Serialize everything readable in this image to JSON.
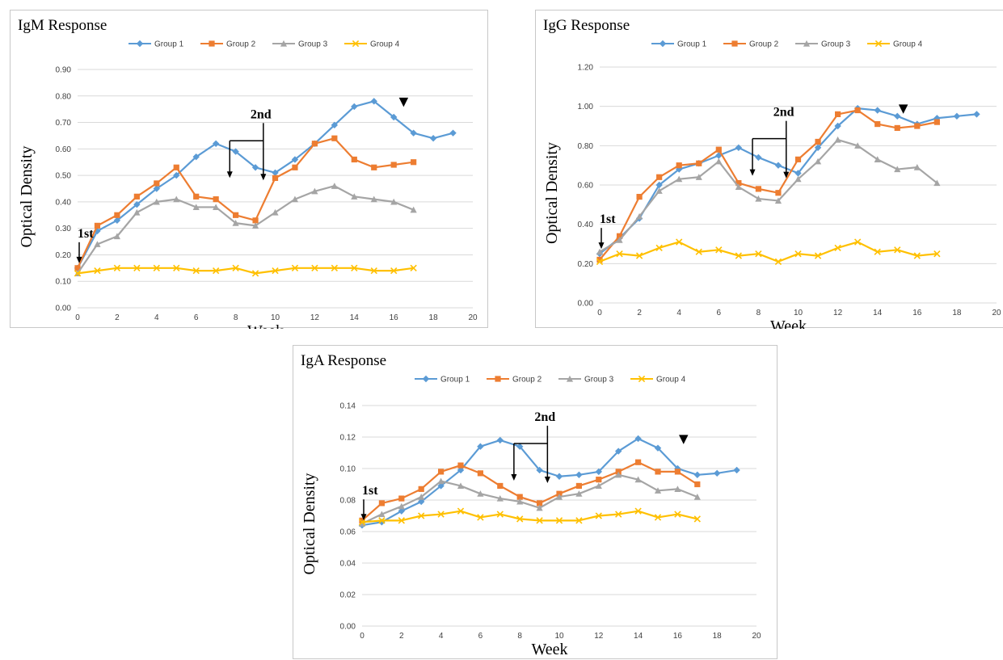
{
  "chart_data": [
    {
      "type": "line",
      "title": "IgM Response",
      "xlabel": "Week",
      "ylabel": "Optical Density",
      "xlim": [
        0,
        20
      ],
      "ylim": [
        0,
        0.9
      ],
      "xticks": [
        "0",
        "2",
        "4",
        "6",
        "8",
        "10",
        "12",
        "14",
        "16",
        "18",
        "20"
      ],
      "yticks": [
        "0.00",
        "0.10",
        "0.20",
        "0.30",
        "0.40",
        "0.50",
        "0.60",
        "0.70",
        "0.80",
        "0.90"
      ],
      "grid": true,
      "legend_position": "top",
      "series": [
        {
          "name": "Group 1",
          "color": "#5b9bd5",
          "marker": "diamond",
          "x": [
            0,
            1,
            2,
            3,
            4,
            5,
            6,
            7,
            8,
            9,
            10,
            11,
            12,
            13,
            14,
            15,
            16,
            17,
            18,
            19
          ],
          "y": [
            0.15,
            0.29,
            0.33,
            0.39,
            0.45,
            0.5,
            0.57,
            0.62,
            0.59,
            0.53,
            0.51,
            0.56,
            0.62,
            0.69,
            0.76,
            0.78,
            0.72,
            0.66,
            0.64,
            0.66
          ]
        },
        {
          "name": "Group 2",
          "color": "#ed7d31",
          "marker": "square",
          "x": [
            0,
            1,
            2,
            3,
            4,
            5,
            6,
            7,
            8,
            9,
            10,
            11,
            12,
            13,
            14,
            15,
            16,
            17
          ],
          "y": [
            0.15,
            0.31,
            0.35,
            0.42,
            0.47,
            0.53,
            0.42,
            0.41,
            0.35,
            0.33,
            0.49,
            0.53,
            0.62,
            0.64,
            0.56,
            0.53,
            0.54,
            0.55
          ]
        },
        {
          "name": "Group 3",
          "color": "#a5a5a5",
          "marker": "triangle",
          "x": [
            0,
            1,
            2,
            3,
            4,
            5,
            6,
            7,
            8,
            9,
            10,
            11,
            12,
            13,
            14,
            15,
            16,
            17
          ],
          "y": [
            0.13,
            0.24,
            0.27,
            0.36,
            0.4,
            0.41,
            0.38,
            0.38,
            0.32,
            0.31,
            0.36,
            0.41,
            0.44,
            0.46,
            0.42,
            0.41,
            0.4,
            0.37
          ]
        },
        {
          "name": "Group 4",
          "color": "#ffc000",
          "marker": "x",
          "x": [
            0,
            1,
            2,
            3,
            4,
            5,
            6,
            7,
            8,
            9,
            10,
            11,
            12,
            13,
            14,
            15,
            16,
            17
          ],
          "y": [
            0.13,
            0.14,
            0.15,
            0.15,
            0.15,
            0.15,
            0.14,
            0.14,
            0.15,
            0.13,
            0.14,
            0.15,
            0.15,
            0.15,
            0.15,
            0.14,
            0.14,
            0.15
          ]
        }
      ],
      "annotations": {
        "first": {
          "text": "1st",
          "week": 0
        },
        "second": {
          "text": "2nd",
          "week": 9
        },
        "marker": {
          "symbol": "▼",
          "week": 16.5
        }
      }
    },
    {
      "type": "line",
      "title": "IgG Response",
      "xlabel": "Week",
      "ylabel": "Optical Density",
      "xlim": [
        0,
        20
      ],
      "ylim": [
        0,
        1.2
      ],
      "xticks": [
        "0",
        "2",
        "4",
        "6",
        "8",
        "10",
        "12",
        "14",
        "16",
        "18",
        "20"
      ],
      "yticks": [
        "0.00",
        "0.20",
        "0.40",
        "0.60",
        "0.80",
        "1.00",
        "1.20"
      ],
      "grid": true,
      "legend_position": "top",
      "series": [
        {
          "name": "Group 1",
          "color": "#5b9bd5",
          "marker": "diamond",
          "x": [
            0,
            1,
            2,
            3,
            4,
            5,
            6,
            7,
            8,
            9,
            10,
            11,
            12,
            13,
            14,
            15,
            16,
            17,
            18,
            19
          ],
          "y": [
            0.25,
            0.33,
            0.43,
            0.6,
            0.68,
            0.71,
            0.75,
            0.79,
            0.74,
            0.7,
            0.66,
            0.79,
            0.9,
            0.99,
            0.98,
            0.95,
            0.91,
            0.94,
            0.95,
            0.96
          ]
        },
        {
          "name": "Group 2",
          "color": "#ed7d31",
          "marker": "square",
          "x": [
            0,
            1,
            2,
            3,
            4,
            5,
            6,
            7,
            8,
            9,
            10,
            11,
            12,
            13,
            14,
            15,
            16,
            17
          ],
          "y": [
            0.22,
            0.34,
            0.54,
            0.64,
            0.7,
            0.71,
            0.78,
            0.61,
            0.58,
            0.56,
            0.73,
            0.82,
            0.96,
            0.98,
            0.91,
            0.89,
            0.9,
            0.92
          ]
        },
        {
          "name": "Group 3",
          "color": "#a5a5a5",
          "marker": "triangle",
          "x": [
            0,
            1,
            2,
            3,
            4,
            5,
            6,
            7,
            8,
            9,
            10,
            11,
            12,
            13,
            14,
            15,
            16,
            17
          ],
          "y": [
            0.26,
            0.32,
            0.44,
            0.57,
            0.63,
            0.64,
            0.72,
            0.59,
            0.53,
            0.52,
            0.63,
            0.72,
            0.83,
            0.8,
            0.73,
            0.68,
            0.69,
            0.61
          ]
        },
        {
          "name": "Group 4",
          "color": "#ffc000",
          "marker": "x",
          "x": [
            0,
            1,
            2,
            3,
            4,
            5,
            6,
            7,
            8,
            9,
            10,
            11,
            12,
            13,
            14,
            15,
            16,
            17
          ],
          "y": [
            0.21,
            0.25,
            0.24,
            0.28,
            0.31,
            0.26,
            0.27,
            0.24,
            0.25,
            0.21,
            0.25,
            0.24,
            0.28,
            0.31,
            0.26,
            0.27,
            0.24,
            0.25
          ]
        }
      ],
      "annotations": {
        "first": {
          "text": "1st",
          "week": 0
        },
        "second": {
          "text": "2nd",
          "week": 9
        },
        "marker": {
          "symbol": "▼",
          "week": 15.3
        }
      }
    },
    {
      "type": "line",
      "title": "IgA Response",
      "xlabel": "Week",
      "ylabel": "Optical Density",
      "xlim": [
        0,
        20
      ],
      "ylim": [
        0,
        0.14
      ],
      "xticks": [
        "0",
        "2",
        "4",
        "6",
        "8",
        "10",
        "12",
        "14",
        "16",
        "18",
        "20"
      ],
      "yticks": [
        "0.00",
        "0.02",
        "0.04",
        "0.06",
        "0.08",
        "0.10",
        "0.12",
        "0.14"
      ],
      "grid": true,
      "legend_position": "top",
      "series": [
        {
          "name": "Group 1",
          "color": "#5b9bd5",
          "marker": "diamond",
          "x": [
            0,
            1,
            2,
            3,
            4,
            5,
            6,
            7,
            8,
            9,
            10,
            11,
            12,
            13,
            14,
            15,
            16,
            17,
            18,
            19
          ],
          "y": [
            0.064,
            0.066,
            0.073,
            0.079,
            0.089,
            0.099,
            0.114,
            0.118,
            0.114,
            0.099,
            0.095,
            0.096,
            0.098,
            0.111,
            0.119,
            0.113,
            0.1,
            0.096,
            0.097,
            0.099
          ]
        },
        {
          "name": "Group 2",
          "color": "#ed7d31",
          "marker": "square",
          "x": [
            0,
            1,
            2,
            3,
            4,
            5,
            6,
            7,
            8,
            9,
            10,
            11,
            12,
            13,
            14,
            15,
            16,
            17
          ],
          "y": [
            0.067,
            0.078,
            0.081,
            0.087,
            0.098,
            0.102,
            0.097,
            0.089,
            0.082,
            0.078,
            0.084,
            0.089,
            0.093,
            0.098,
            0.104,
            0.098,
            0.098,
            0.09
          ]
        },
        {
          "name": "Group 3",
          "color": "#a5a5a5",
          "marker": "triangle",
          "x": [
            0,
            1,
            2,
            3,
            4,
            5,
            6,
            7,
            8,
            9,
            10,
            11,
            12,
            13,
            14,
            15,
            16,
            17
          ],
          "y": [
            0.065,
            0.071,
            0.076,
            0.082,
            0.092,
            0.089,
            0.084,
            0.081,
            0.079,
            0.075,
            0.082,
            0.084,
            0.089,
            0.096,
            0.093,
            0.086,
            0.087,
            0.082
          ]
        },
        {
          "name": "Group 4",
          "color": "#ffc000",
          "marker": "x",
          "x": [
            0,
            1,
            2,
            3,
            4,
            5,
            6,
            7,
            8,
            9,
            10,
            11,
            12,
            13,
            14,
            15,
            16,
            17
          ],
          "y": [
            0.066,
            0.067,
            0.067,
            0.07,
            0.071,
            0.073,
            0.069,
            0.071,
            0.068,
            0.067,
            0.067,
            0.067,
            0.07,
            0.071,
            0.073,
            0.069,
            0.071,
            0.068
          ]
        }
      ],
      "annotations": {
        "first": {
          "text": "1st",
          "week": 0
        },
        "second": {
          "text": "2nd",
          "week": 9
        },
        "marker": {
          "symbol": "▼",
          "week": 16.3
        }
      }
    }
  ]
}
